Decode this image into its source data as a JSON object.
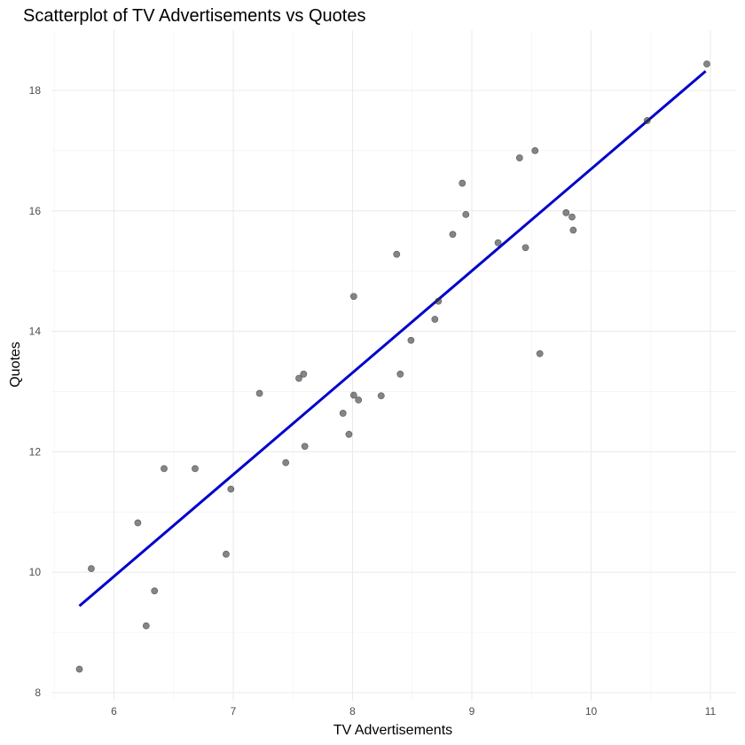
{
  "chart_data": {
    "type": "scatter",
    "title": "Scatterplot of TV Advertisements vs Quotes",
    "xlabel": "TV Advertisements",
    "ylabel": "Quotes",
    "xlim": [
      5.5,
      11.2
    ],
    "ylim": [
      7.9,
      18.9
    ],
    "x_ticks": [
      6,
      7,
      8,
      9,
      10,
      11
    ],
    "y_ticks": [
      8,
      10,
      12,
      14,
      16,
      18
    ],
    "grid": true,
    "legend": "none",
    "point_color": "#333333",
    "line_color": "#0000cc",
    "points": [
      {
        "x": 5.71,
        "y": 8.39
      },
      {
        "x": 5.81,
        "y": 10.06
      },
      {
        "x": 6.2,
        "y": 10.82
      },
      {
        "x": 6.27,
        "y": 9.11
      },
      {
        "x": 6.34,
        "y": 9.69
      },
      {
        "x": 6.42,
        "y": 11.72
      },
      {
        "x": 6.68,
        "y": 11.72
      },
      {
        "x": 6.94,
        "y": 10.3
      },
      {
        "x": 6.98,
        "y": 11.38
      },
      {
        "x": 7.22,
        "y": 12.97
      },
      {
        "x": 7.44,
        "y": 11.82
      },
      {
        "x": 7.55,
        "y": 13.22
      },
      {
        "x": 7.59,
        "y": 13.29
      },
      {
        "x": 7.6,
        "y": 12.09
      },
      {
        "x": 7.92,
        "y": 12.64
      },
      {
        "x": 7.97,
        "y": 12.29
      },
      {
        "x": 8.01,
        "y": 14.58
      },
      {
        "x": 8.01,
        "y": 12.94
      },
      {
        "x": 8.05,
        "y": 12.86
      },
      {
        "x": 8.24,
        "y": 12.93
      },
      {
        "x": 8.37,
        "y": 15.28
      },
      {
        "x": 8.4,
        "y": 13.29
      },
      {
        "x": 8.49,
        "y": 13.85
      },
      {
        "x": 8.69,
        "y": 14.2
      },
      {
        "x": 8.72,
        "y": 14.5
      },
      {
        "x": 8.84,
        "y": 15.61
      },
      {
        "x": 8.92,
        "y": 16.46
      },
      {
        "x": 8.95,
        "y": 15.94
      },
      {
        "x": 9.22,
        "y": 15.47
      },
      {
        "x": 9.4,
        "y": 16.88
      },
      {
        "x": 9.45,
        "y": 15.39
      },
      {
        "x": 9.53,
        "y": 17.0
      },
      {
        "x": 9.57,
        "y": 13.63
      },
      {
        "x": 9.79,
        "y": 15.97
      },
      {
        "x": 9.84,
        "y": 15.9
      },
      {
        "x": 9.85,
        "y": 15.68
      },
      {
        "x": 10.47,
        "y": 17.5
      },
      {
        "x": 10.97,
        "y": 18.44
      }
    ],
    "fit_line": {
      "x": [
        5.71,
        10.96
      ],
      "y": [
        9.44,
        18.32
      ]
    }
  }
}
